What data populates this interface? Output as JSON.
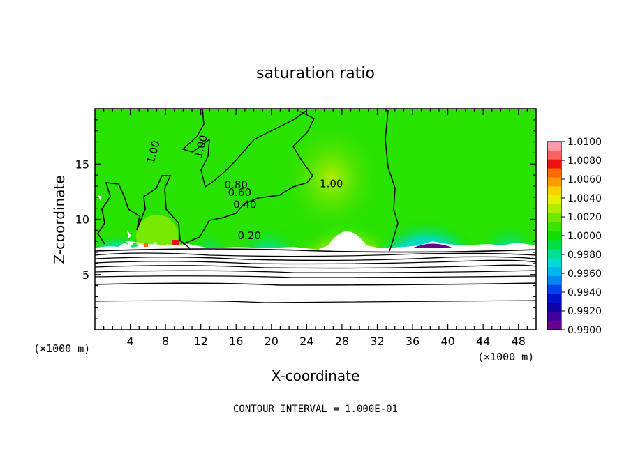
{
  "chart_data": {
    "type": "heatmap",
    "title": "saturation ratio",
    "xlabel": "X-coordinate",
    "ylabel": "Z-coordinate",
    "x_units": "(×1000 m)",
    "y_units": "(×1000 m)",
    "xlim": [
      0,
      50
    ],
    "ylim": [
      0,
      20
    ],
    "x_ticks": [
      4,
      8,
      12,
      16,
      20,
      24,
      28,
      32,
      36,
      40,
      44,
      48
    ],
    "y_ticks": [
      5,
      10,
      15
    ],
    "footer": "CONTOUR INTERVAL = 1.000E-01",
    "colorbar": {
      "levels": [
        "1.0100",
        "1.0080",
        "1.0060",
        "1.0040",
        "1.0020",
        "1.0000",
        "0.9980",
        "0.9960",
        "0.9940",
        "0.9920",
        "0.9900"
      ],
      "colors": [
        "#ff9aa8",
        "#ff6060",
        "#ee1010",
        "#ff6a00",
        "#ff9a00",
        "#ffd000",
        "#e8f000",
        "#b0ee00",
        "#70e800",
        "#38e400",
        "#10e000",
        "#00e040",
        "#00e090",
        "#00dcd0",
        "#00b8f0",
        "#0088f0",
        "#0040f0",
        "#0010d0",
        "#1000a8",
        "#4000a0",
        "#680090"
      ]
    },
    "contour_labels": [
      {
        "text": "1.00",
        "x": 12.4,
        "z": 16.5
      },
      {
        "text": "1.00",
        "x": 7.0,
        "z": 16.0
      },
      {
        "text": "1.00",
        "x": 26.8,
        "z": 12.9
      },
      {
        "text": "0.80",
        "x": 16.0,
        "z": 12.8
      },
      {
        "text": "0.60",
        "x": 16.4,
        "z": 12.1
      },
      {
        "text": "0.40",
        "x": 17.0,
        "z": 11.0
      },
      {
        "text": "0.20",
        "x": 17.5,
        "z": 8.2
      }
    ],
    "stable_layer_contours": [
      0.1,
      0.2,
      0.3,
      0.4,
      0.5,
      0.6,
      0.7,
      0.8,
      0.9
    ]
  }
}
